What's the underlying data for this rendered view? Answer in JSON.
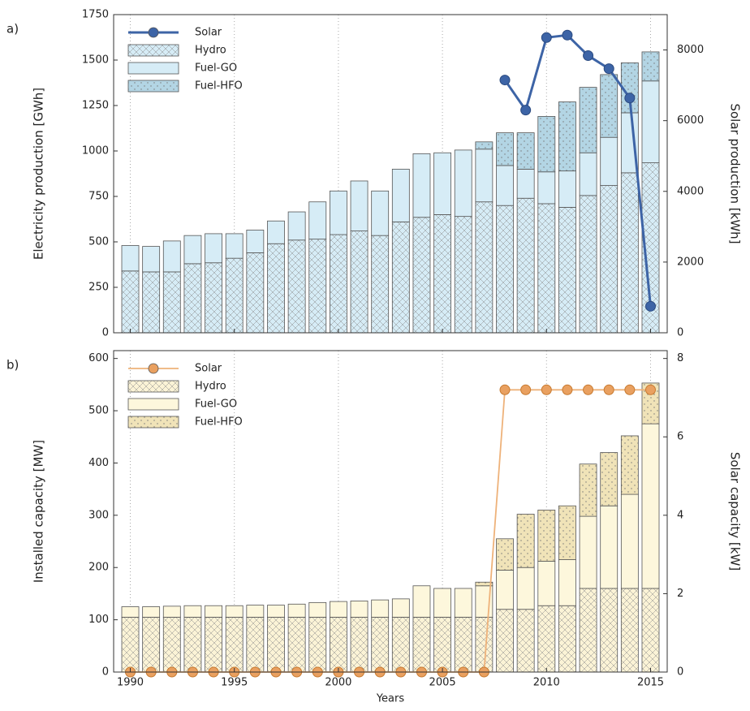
{
  "chart_data": [
    {
      "type": "bar",
      "label": "a)",
      "stacked": true,
      "ylabel": "Electricity production [GWh]",
      "y2label": "Solar production [kWh]",
      "x": [
        1990,
        1991,
        1992,
        1993,
        1994,
        1995,
        1996,
        1997,
        1998,
        1999,
        2000,
        2001,
        2002,
        2003,
        2004,
        2005,
        2006,
        2007,
        2008,
        2009,
        2010,
        2011,
        2012,
        2013,
        2014,
        2015
      ],
      "xlim": [
        1989.2,
        2015.8
      ],
      "xticks": [
        1990,
        1995,
        2000,
        2005,
        2010,
        2015
      ],
      "ylim": [
        0,
        1750
      ],
      "yticks": [
        0,
        250,
        500,
        750,
        1000,
        1250,
        1500,
        1750
      ],
      "y2lim": [
        0,
        9000
      ],
      "y2ticks": [
        0,
        2000,
        4000,
        6000,
        8000
      ],
      "grid": true,
      "legend": "upper left",
      "series": [
        {
          "name": "Solar",
          "type": "line",
          "axis": "y2",
          "color": "#3d64a6",
          "values": [
            null,
            null,
            null,
            null,
            null,
            null,
            null,
            null,
            null,
            null,
            null,
            null,
            null,
            null,
            null,
            null,
            null,
            null,
            7150,
            6300,
            8350,
            8420,
            7840,
            7470,
            6640,
            750
          ]
        },
        {
          "name": "Hydro",
          "color": "#d6ecf6",
          "hatch": "x",
          "values": [
            340,
            335,
            335,
            380,
            385,
            410,
            440,
            490,
            510,
            515,
            540,
            560,
            535,
            610,
            635,
            650,
            640,
            720,
            700,
            740,
            710,
            690,
            755,
            810,
            880,
            935
          ]
        },
        {
          "name": "Fuel-GO",
          "color": "#d6ecf6",
          "values": [
            140,
            140,
            170,
            155,
            160,
            135,
            125,
            125,
            155,
            205,
            240,
            275,
            245,
            290,
            350,
            340,
            365,
            290,
            220,
            160,
            175,
            200,
            235,
            265,
            330,
            450
          ]
        },
        {
          "name": "Fuel-HFO",
          "color": "#b3d5e4",
          "hatch": "dots",
          "values": [
            0,
            0,
            0,
            0,
            0,
            0,
            0,
            0,
            0,
            0,
            0,
            0,
            0,
            0,
            0,
            0,
            0,
            40,
            180,
            200,
            305,
            380,
            360,
            345,
            275,
            160
          ]
        }
      ]
    },
    {
      "type": "bar",
      "label": "b)",
      "stacked": true,
      "ylabel": "Installed capacity [MW]",
      "y2label": "Solar capacity [kW]",
      "xlabel": "Years",
      "x": [
        1990,
        1991,
        1992,
        1993,
        1994,
        1995,
        1996,
        1997,
        1998,
        1999,
        2000,
        2001,
        2002,
        2003,
        2004,
        2005,
        2006,
        2007,
        2008,
        2009,
        2010,
        2011,
        2012,
        2013,
        2014,
        2015
      ],
      "xlim": [
        1989.2,
        2015.8
      ],
      "xticks": [
        1990,
        1995,
        2000,
        2005,
        2010,
        2015
      ],
      "ylim": [
        0,
        615
      ],
      "yticks": [
        0,
        100,
        200,
        300,
        400,
        500,
        600
      ],
      "y2lim": [
        0,
        8.2
      ],
      "y2ticks": [
        0,
        2,
        4,
        6,
        8
      ],
      "grid": true,
      "legend": "upper left",
      "series": [
        {
          "name": "Solar",
          "type": "line",
          "axis": "y2",
          "color": "#eeb27a",
          "marker_color": "#e9a060",
          "values": [
            0,
            0,
            0,
            0,
            0,
            0,
            0,
            0,
            0,
            0,
            0,
            0,
            0,
            0,
            0,
            0,
            0,
            0,
            7.2,
            7.2,
            7.2,
            7.2,
            7.2,
            7.2,
            7.2,
            7.2
          ]
        },
        {
          "name": "Hydro",
          "color": "#fbf3d6",
          "hatch": "x",
          "values": [
            105,
            105,
            105,
            105,
            105,
            105,
            105,
            105,
            105,
            105,
            105,
            105,
            105,
            105,
            105,
            105,
            105,
            105,
            120,
            120,
            127,
            127,
            160,
            160,
            160,
            160
          ]
        },
        {
          "name": "Fuel-GO",
          "color": "#fdf7dc",
          "values": [
            20,
            20,
            21,
            22,
            22,
            22,
            23,
            23,
            25,
            28,
            30,
            31,
            33,
            35,
            60,
            55,
            55,
            60,
            75,
            80,
            85,
            88,
            138,
            158,
            180,
            315
          ]
        },
        {
          "name": "Fuel-HFO",
          "color": "#f0e3b8",
          "hatch": "dots",
          "values": [
            0,
            0,
            0,
            0,
            0,
            0,
            0,
            0,
            0,
            0,
            0,
            0,
            0,
            0,
            0,
            0,
            0,
            7,
            60,
            102,
            98,
            103,
            100,
            102,
            112,
            78
          ]
        }
      ]
    }
  ]
}
